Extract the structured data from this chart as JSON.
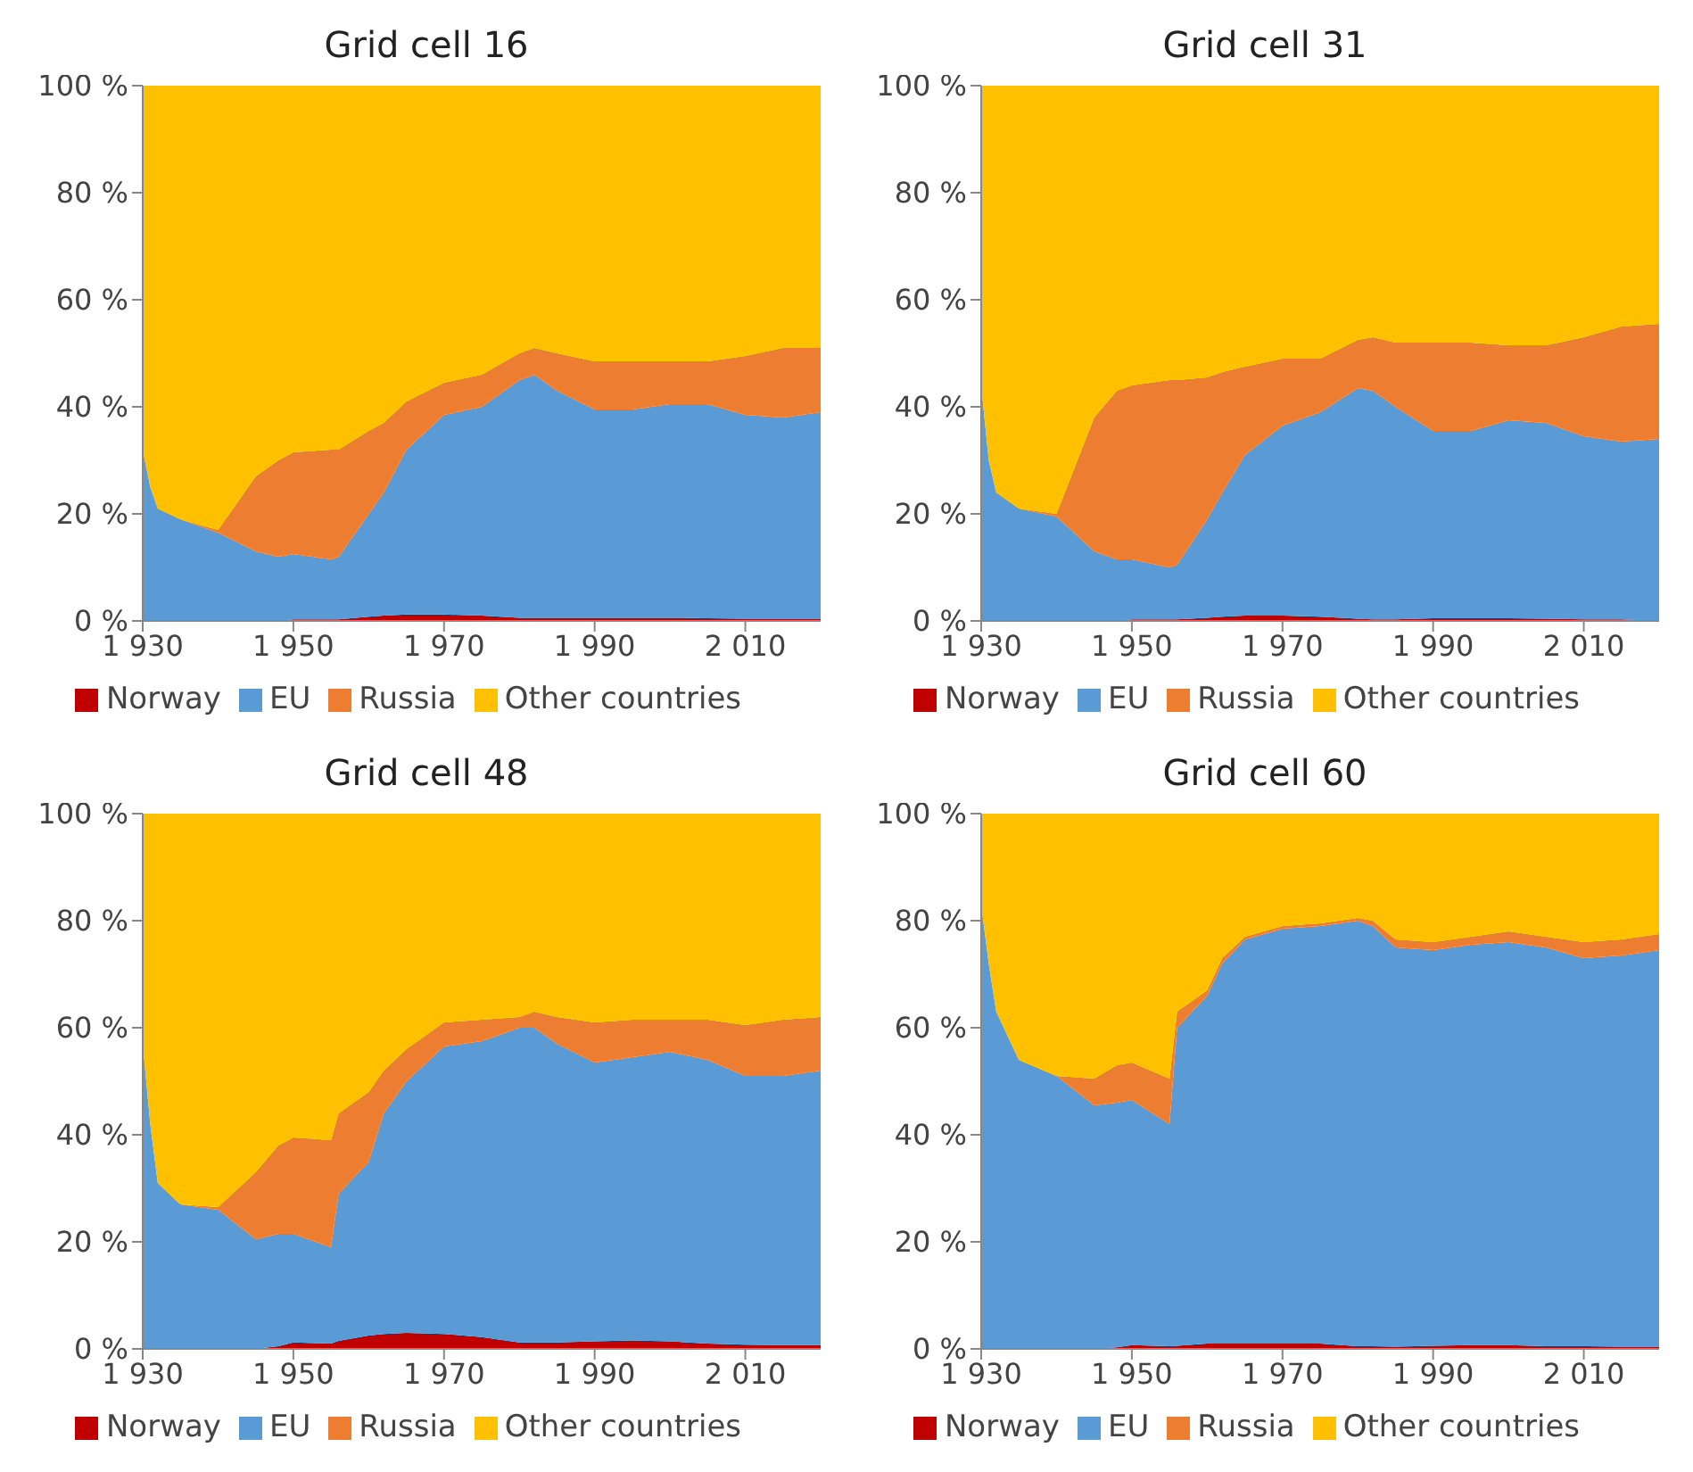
{
  "chart_data": [
    {
      "type": "area",
      "title": "Grid cell 16",
      "stacked": true,
      "legend": "bottom",
      "x": [
        1930,
        1931,
        1932,
        1935,
        1940,
        1945,
        1948,
        1950,
        1955,
        1956,
        1960,
        1962,
        1965,
        1970,
        1975,
        1980,
        1982,
        1985,
        1990,
        1995,
        2000,
        2005,
        2010,
        2015,
        2020
      ],
      "xlim": [
        1930,
        2020
      ],
      "xticks": [
        {
          "value": 1930,
          "label": "1 930"
        },
        {
          "value": 1950,
          "label": "1 950"
        },
        {
          "value": 1970,
          "label": "1 970"
        },
        {
          "value": 1990,
          "label": "1 990"
        },
        {
          "value": 2010,
          "label": "2 010"
        }
      ],
      "ylim": [
        0,
        100
      ],
      "yticks": [
        {
          "value": 0,
          "label": "0 %"
        },
        {
          "value": 20,
          "label": "20 %"
        },
        {
          "value": 40,
          "label": "40 %"
        },
        {
          "value": 60,
          "label": "60 %"
        },
        {
          "value": 80,
          "label": "80 %"
        },
        {
          "value": 100,
          "label": "100 %"
        }
      ],
      "series": [
        {
          "name": "Norway",
          "color": "#c00000",
          "values": [
            0,
            0,
            0,
            0,
            0,
            0,
            0,
            0.3,
            0.3,
            0.3,
            0.8,
            1,
            1.2,
            1.2,
            1,
            0.6,
            0.6,
            0.6,
            0.6,
            0.6,
            0.6,
            0.5,
            0.4,
            0.4,
            0.4
          ]
        },
        {
          "name": "EU",
          "color": "#5b9bd5",
          "values": [
            32,
            25,
            21,
            19,
            16.5,
            13,
            12,
            12.2,
            11.2,
            11.7,
            19.2,
            23,
            30.8,
            37.3,
            39,
            44.4,
            45.4,
            42.4,
            38.9,
            38.9,
            39.9,
            40,
            38.1,
            37.6,
            38.6
          ]
        },
        {
          "name": "Russia",
          "color": "#ed7d31",
          "values": [
            0,
            0,
            0,
            0,
            0.5,
            14,
            18,
            19,
            20.5,
            20,
            15.5,
            13,
            9,
            6,
            6,
            5,
            5,
            7,
            9,
            9,
            8,
            8,
            11,
            13,
            12
          ]
        },
        {
          "name": "Other countries",
          "color": "#ffc000",
          "values": [
            68,
            75,
            79,
            81,
            83,
            73,
            70,
            68.5,
            68,
            68,
            64.5,
            63,
            59,
            55.5,
            54,
            50,
            49,
            50,
            51.5,
            51.5,
            51.5,
            51.5,
            50.5,
            49,
            49
          ]
        }
      ]
    },
    {
      "type": "area",
      "title": "Grid cell 31",
      "stacked": true,
      "legend": "bottom",
      "x": [
        1930,
        1931,
        1932,
        1935,
        1940,
        1945,
        1948,
        1950,
        1955,
        1956,
        1960,
        1962,
        1965,
        1970,
        1975,
        1980,
        1982,
        1985,
        1990,
        1995,
        2000,
        2005,
        2010,
        2015,
        2020
      ],
      "xlim": [
        1930,
        2020
      ],
      "xticks": [
        {
          "value": 1930,
          "label": "1 930"
        },
        {
          "value": 1950,
          "label": "1 950"
        },
        {
          "value": 1970,
          "label": "1 970"
        },
        {
          "value": 1990,
          "label": "1 990"
        },
        {
          "value": 2010,
          "label": "2 010"
        }
      ],
      "ylim": [
        0,
        100
      ],
      "yticks": [
        {
          "value": 0,
          "label": "0 %"
        },
        {
          "value": 20,
          "label": "20 %"
        },
        {
          "value": 40,
          "label": "40 %"
        },
        {
          "value": 60,
          "label": "60 %"
        },
        {
          "value": 80,
          "label": "80 %"
        },
        {
          "value": 100,
          "label": "100 %"
        }
      ],
      "series": [
        {
          "name": "Norway",
          "color": "#c00000",
          "values": [
            0,
            0,
            0,
            0,
            0,
            0,
            0,
            0.3,
            0.3,
            0.3,
            0.6,
            0.8,
            1,
            1,
            0.8,
            0.4,
            0.3,
            0.3,
            0.5,
            0.5,
            0.5,
            0.4,
            0.3,
            0.3,
            0
          ]
        },
        {
          "name": "EU",
          "color": "#5b9bd5",
          "values": [
            44,
            30,
            24,
            21,
            19.5,
            13,
            11.5,
            11.2,
            9.7,
            10.2,
            18.4,
            23.2,
            30,
            35.5,
            38.2,
            43.1,
            42.7,
            39.7,
            35,
            35,
            37,
            36.6,
            34.2,
            33.2,
            34
          ]
        },
        {
          "name": "Russia",
          "color": "#ed7d31",
          "values": [
            0,
            0,
            0,
            0,
            0.5,
            25,
            31.5,
            32.5,
            35,
            34.5,
            26.5,
            22.5,
            16.5,
            12.5,
            10,
            9,
            10,
            12,
            16.5,
            16.5,
            14,
            14.5,
            18.5,
            21.5,
            21.5
          ]
        },
        {
          "name": "Other countries",
          "color": "#ffc000",
          "values": [
            56,
            70,
            76,
            79,
            80,
            62,
            57,
            56,
            55,
            55,
            54.5,
            53.5,
            52.5,
            51,
            51,
            47.5,
            47,
            48,
            48,
            48,
            48.5,
            48.5,
            47,
            45,
            44.5
          ]
        }
      ]
    },
    {
      "type": "area",
      "title": "Grid cell 48",
      "stacked": true,
      "legend": "bottom",
      "x": [
        1930,
        1931,
        1932,
        1935,
        1940,
        1945,
        1948,
        1950,
        1955,
        1956,
        1960,
        1962,
        1965,
        1970,
        1975,
        1980,
        1982,
        1985,
        1990,
        1995,
        2000,
        2005,
        2010,
        2015,
        2020
      ],
      "xlim": [
        1930,
        2020
      ],
      "xticks": [
        {
          "value": 1930,
          "label": "1 930"
        },
        {
          "value": 1950,
          "label": "1 950"
        },
        {
          "value": 1970,
          "label": "1 970"
        },
        {
          "value": 1990,
          "label": "1 990"
        },
        {
          "value": 2010,
          "label": "2 010"
        }
      ],
      "ylim": [
        0,
        100
      ],
      "yticks": [
        {
          "value": 0,
          "label": "0 %"
        },
        {
          "value": 20,
          "label": "20 %"
        },
        {
          "value": 40,
          "label": "40 %"
        },
        {
          "value": 60,
          "label": "60 %"
        },
        {
          "value": 80,
          "label": "80 %"
        },
        {
          "value": 100,
          "label": "100 %"
        }
      ],
      "series": [
        {
          "name": "Norway",
          "color": "#c00000",
          "values": [
            0,
            0,
            0,
            0,
            0,
            0,
            0.5,
            1.2,
            1,
            1.5,
            2.5,
            2.8,
            3,
            2.8,
            2.2,
            1.2,
            1.2,
            1.2,
            1.4,
            1.6,
            1.4,
            1,
            0.8,
            0.7,
            0.7
          ]
        },
        {
          "name": "EU",
          "color": "#5b9bd5",
          "values": [
            57,
            42,
            31,
            27,
            26,
            20.5,
            21,
            20.3,
            18,
            27.5,
            32.5,
            41.2,
            47,
            53.7,
            55.3,
            58.8,
            58.8,
            55.8,
            52.1,
            52.9,
            54.1,
            53,
            50.2,
            50.3,
            51.3
          ]
        },
        {
          "name": "Russia",
          "color": "#ed7d31",
          "values": [
            0,
            0,
            0,
            0,
            0.5,
            12.5,
            16.5,
            18,
            20,
            15,
            13,
            8,
            6,
            4.5,
            4,
            2,
            3,
            5,
            7.5,
            7,
            6,
            7.5,
            9.5,
            10.5,
            10
          ]
        },
        {
          "name": "Other countries",
          "color": "#ffc000",
          "values": [
            43,
            58,
            69,
            73,
            73.5,
            67,
            62,
            60.5,
            61,
            56,
            52,
            48,
            44,
            39,
            38.5,
            38,
            37,
            38,
            39,
            38.5,
            38.5,
            38.5,
            39.5,
            38.5,
            38
          ]
        }
      ]
    },
    {
      "type": "area",
      "title": "Grid cell 60",
      "stacked": true,
      "legend": "bottom",
      "x": [
        1930,
        1931,
        1932,
        1935,
        1940,
        1945,
        1948,
        1950,
        1955,
        1956,
        1960,
        1962,
        1965,
        1970,
        1975,
        1980,
        1982,
        1985,
        1990,
        1995,
        2000,
        2005,
        2010,
        2015,
        2020
      ],
      "xlim": [
        1930,
        2020
      ],
      "xticks": [
        {
          "value": 1930,
          "label": "1 930"
        },
        {
          "value": 1950,
          "label": "1 950"
        },
        {
          "value": 1970,
          "label": "1 970"
        },
        {
          "value": 1990,
          "label": "1 990"
        },
        {
          "value": 2010,
          "label": "2 010"
        }
      ],
      "ylim": [
        0,
        100
      ],
      "yticks": [
        {
          "value": 0,
          "label": "0 %"
        },
        {
          "value": 20,
          "label": "20 %"
        },
        {
          "value": 40,
          "label": "40 %"
        },
        {
          "value": 60,
          "label": "60 %"
        },
        {
          "value": 80,
          "label": "80 %"
        },
        {
          "value": 100,
          "label": "100 %"
        }
      ],
      "series": [
        {
          "name": "Norway",
          "color": "#c00000",
          "values": [
            0,
            0,
            0,
            0,
            0,
            0,
            0.3,
            0.7,
            0.5,
            0.6,
            1,
            1,
            1,
            1,
            1,
            0.5,
            0.5,
            0.4,
            0.6,
            0.7,
            0.7,
            0.5,
            0.5,
            0.4,
            0.4
          ]
        },
        {
          "name": "EU",
          "color": "#5b9bd5",
          "values": [
            83,
            72,
            63,
            54,
            51,
            45.5,
            45.7,
            45.8,
            41.5,
            59.4,
            65,
            71,
            75.5,
            77.5,
            78,
            79.5,
            78.5,
            74.6,
            73.9,
            74.8,
            75.3,
            74.5,
            72.5,
            73.1,
            74.1
          ]
        },
        {
          "name": "Russia",
          "color": "#ed7d31",
          "values": [
            0,
            0,
            0,
            0,
            0,
            5,
            7,
            7,
            8.5,
            3,
            1,
            1,
            0.5,
            0.5,
            0.5,
            0.5,
            1,
            1.5,
            1.5,
            1.5,
            2,
            2,
            3,
            3,
            3
          ]
        },
        {
          "name": "Other countries",
          "color": "#ffc000",
          "values": [
            17,
            28,
            37,
            46,
            49,
            49.5,
            47,
            46.5,
            49.5,
            37,
            33,
            27,
            23,
            21,
            20.5,
            19.5,
            20,
            23.5,
            24,
            23,
            22,
            23,
            24,
            23.5,
            22.5
          ]
        }
      ]
    }
  ]
}
